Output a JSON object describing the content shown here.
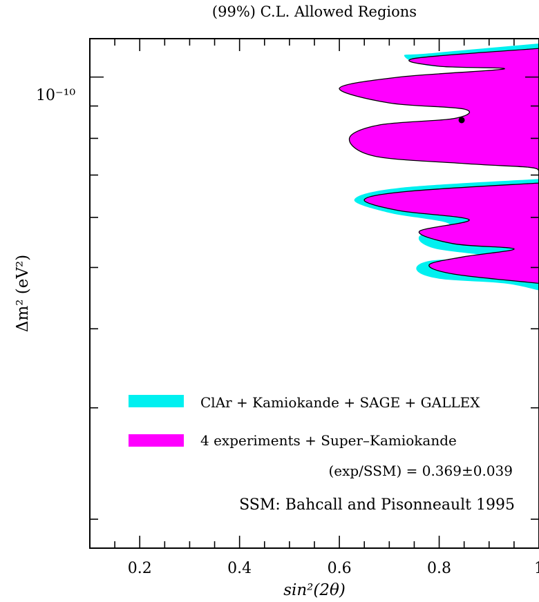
{
  "chart_data": {
    "type": "area",
    "title": "(99%) C.L. Allowed Regions",
    "xlabel": "sin²(2θ)",
    "ylabel": "Δm²  (eV²)",
    "xlim": [
      0.1,
      1.0
    ],
    "ylim": [
      1.8e-11,
      1.15e-10
    ],
    "yscale": "log",
    "x_ticks": [
      "0.2",
      "0.4",
      "0.6",
      "0.8",
      "1"
    ],
    "x_tick_values": [
      0.2,
      0.4,
      0.6,
      0.8,
      1.0
    ],
    "y_tick_label": "10⁻¹⁰",
    "y_tick_value": 1e-10,
    "colors": {
      "cyan": "#00f0f0",
      "magenta": "#ff00ff"
    },
    "series": [
      {
        "name": "ClAr + Kamiokande + SAGE + GALLEX",
        "color": "#00f0f0",
        "regions": [
          {
            "points": [
              [
                1.0,
                1.13e-10
              ],
              [
                0.78,
                1.09e-10
              ],
              [
                0.73,
                1.08e-10
              ],
              [
                0.79,
                1.04e-10
              ],
              [
                1.0,
                1.03e-10
              ]
            ]
          },
          {
            "points": [
              [
                1.0,
                6.9e-11
              ],
              [
                0.72,
                6.68e-11
              ],
              [
                0.63,
                6.4e-11
              ],
              [
                0.7,
                6.1e-11
              ],
              [
                0.82,
                5.86e-11
              ],
              [
                0.76,
                5.6e-11
              ],
              [
                0.79,
                5.36e-11
              ],
              [
                0.9,
                5.2e-11
              ],
              [
                0.78,
                5.12e-11
              ],
              [
                0.755,
                4.95e-11
              ],
              [
                0.8,
                4.8e-11
              ],
              [
                0.93,
                4.72e-11
              ],
              [
                1.0,
                4.6e-11
              ]
            ]
          }
        ]
      },
      {
        "name": "4 experiments + Super–Kamiokande",
        "color": "#ff00ff",
        "regions": [
          {
            "points": [
              [
                1.0,
                1.11e-10
              ],
              [
                0.75,
                1.07e-10
              ],
              [
                0.8,
                1.04e-10
              ],
              [
                0.93,
                1.03e-10
              ],
              [
                0.72,
                1e-10
              ],
              [
                0.6,
                9.6e-11
              ],
              [
                0.7,
                9.1e-11
              ],
              [
                0.85,
                8.9e-11
              ],
              [
                0.83,
                8.6e-11
              ],
              [
                0.68,
                8.4e-11
              ],
              [
                0.62,
                8e-11
              ],
              [
                0.67,
                7.5e-11
              ],
              [
                0.85,
                7.3e-11
              ],
              [
                0.98,
                7.2e-11
              ],
              [
                1.0,
                7.1e-11
              ]
            ]
          },
          {
            "points": [
              [
                1.0,
                6.8e-11
              ],
              [
                0.74,
                6.6e-11
              ],
              [
                0.65,
                6.4e-11
              ],
              [
                0.72,
                6.15e-11
              ],
              [
                0.86,
                5.95e-11
              ],
              [
                0.76,
                5.7e-11
              ],
              [
                0.83,
                5.45e-11
              ],
              [
                0.95,
                5.35e-11
              ],
              [
                0.85,
                5.2e-11
              ],
              [
                0.78,
                5.05e-11
              ],
              [
                0.83,
                4.88e-11
              ],
              [
                1.0,
                4.72e-11
              ]
            ]
          }
        ]
      }
    ],
    "best_fit": {
      "x": 0.845,
      "y": 8.55e-11
    },
    "legend_position": "bottom-right",
    "annotations": [
      "(exp/SSM) = 0.369±0.039",
      "SSM: Bahcall and Pisonneault 1995"
    ]
  }
}
